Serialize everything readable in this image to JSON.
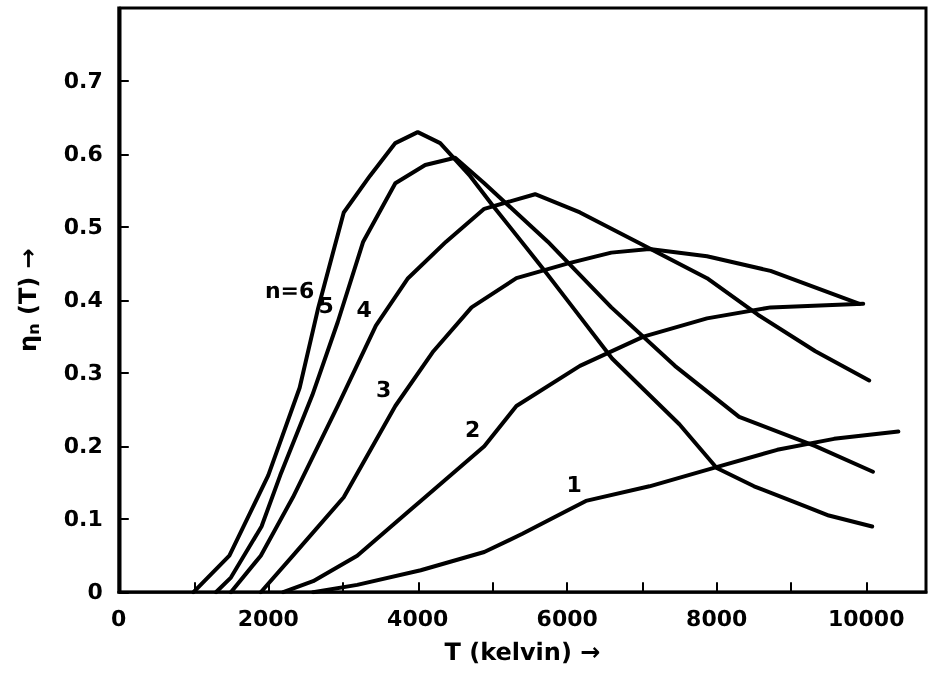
{
  "chart_data": {
    "type": "line",
    "xlabel": "T (kelvin) →",
    "ylabel": "η$_{n}$ (T) →",
    "xlim": [
      0,
      10800
    ],
    "ylim": [
      0,
      0.8
    ],
    "xticks": [
      0,
      {
        "value": 1000,
        "label": null
      },
      2000,
      {
        "value": 3000,
        "label": null
      },
      4000,
      {
        "value": 5000,
        "label": null
      },
      6000,
      {
        "value": 7000,
        "label": null
      },
      8000,
      {
        "value": 9000,
        "label": null
      },
      10000
    ],
    "yticks": [
      0,
      0.1,
      0.2,
      0.3,
      0.4,
      0.5,
      0.6,
      0.7
    ],
    "grid": false,
    "marker": "none",
    "line_style": "solid",
    "series": [
      {
        "name": "n=6",
        "color": "#000000",
        "x": [
          1000,
          1480,
          2000,
          2420,
          2670,
          3010,
          3360,
          3700,
          4000,
          4300,
          4700,
          5000,
          5700,
          6000,
          6600,
          7000,
          7500,
          8000,
          8500,
          9000,
          9500,
          10080
        ],
        "values": [
          0,
          0.05,
          0.16,
          0.28,
          0.39,
          0.52,
          0.57,
          0.615,
          0.63,
          0.615,
          0.57,
          0.53,
          0.44,
          0.4,
          0.32,
          0.28,
          0.23,
          0.17,
          0.145,
          0.125,
          0.105,
          0.09
        ]
      },
      {
        "name": "5",
        "color": "#000000",
        "x": [
          1300,
          1500,
          1910,
          2160,
          2590,
          2930,
          3270,
          3700,
          4100,
          4500,
          4890,
          5740,
          6590,
          7440,
          8300,
          9320,
          10090
        ],
        "values": [
          0,
          0.02,
          0.09,
          0.16,
          0.27,
          0.37,
          0.48,
          0.56,
          0.585,
          0.595,
          0.56,
          0.48,
          0.39,
          0.31,
          0.24,
          0.2,
          0.165
        ]
      },
      {
        "name": "4",
        "color": "#000000",
        "x": [
          1500,
          1900,
          2330,
          2930,
          3440,
          3870,
          4380,
          4890,
          5570,
          6170,
          7020,
          7870,
          8550,
          9320,
          10040
        ],
        "values": [
          0,
          0.05,
          0.13,
          0.255,
          0.365,
          0.43,
          0.48,
          0.525,
          0.545,
          0.52,
          0.475,
          0.43,
          0.38,
          0.33,
          0.29
        ]
      },
      {
        "name": "3",
        "color": "#000000",
        "x": [
          1900,
          2330,
          3010,
          3700,
          4210,
          4720,
          5320,
          6000,
          6590,
          7100,
          7870,
          8720,
          9910
        ],
        "values": [
          0,
          0.05,
          0.13,
          0.255,
          0.33,
          0.39,
          0.43,
          0.45,
          0.465,
          0.47,
          0.46,
          0.44,
          0.395
        ]
      },
      {
        "name": "2",
        "color": "#000000",
        "x": [
          2200,
          2600,
          3190,
          4040,
          4890,
          5320,
          6170,
          7020,
          7870,
          8720,
          9960
        ],
        "values": [
          0,
          0.015,
          0.05,
          0.125,
          0.2,
          0.255,
          0.31,
          0.35,
          0.375,
          0.39,
          0.395
        ]
      },
      {
        "name": "1",
        "color": "#000000",
        "x": [
          2600,
          3190,
          4040,
          4890,
          5400,
          6250,
          7100,
          7950,
          8810,
          9570,
          10430
        ],
        "values": [
          0,
          0.01,
          0.03,
          0.055,
          0.08,
          0.125,
          0.145,
          0.17,
          0.195,
          0.21,
          0.22
        ]
      }
    ]
  }
}
